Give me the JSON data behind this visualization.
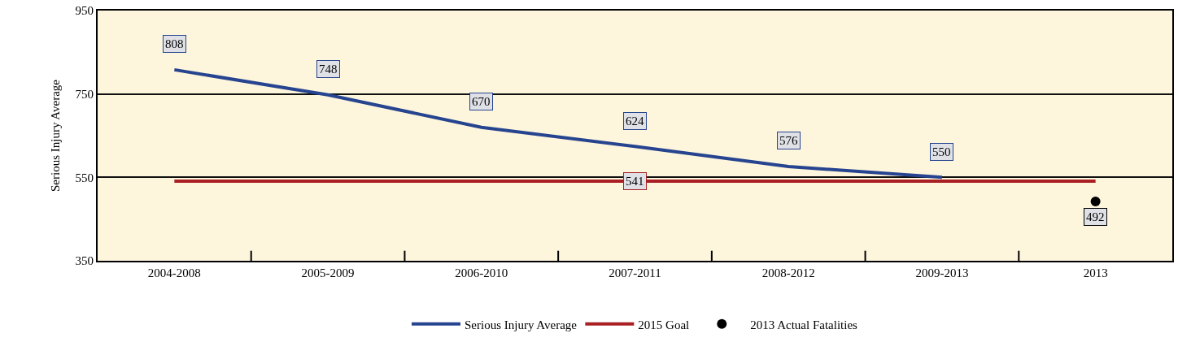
{
  "chart_data": {
    "type": "line",
    "ylabel": "Serious Injury Average",
    "categories": [
      "2004-2008",
      "2005-2009",
      "2006-2010",
      "2007-2011",
      "2008-2012",
      "2009-2013",
      "2013"
    ],
    "series": [
      {
        "name": "Serious Injury Average",
        "color": "#26448f",
        "values": [
          808,
          748,
          670,
          624,
          576,
          550,
          null
        ],
        "value_labels": [
          "808",
          "748",
          "670",
          "624",
          "576",
          "550",
          null
        ]
      },
      {
        "name": "2015 Goal",
        "type": "line",
        "color": "#a91f24",
        "values": [
          541,
          541,
          541,
          541,
          541,
          541,
          541
        ],
        "value_labels": [
          null,
          null,
          null,
          "541",
          null,
          null,
          null
        ]
      },
      {
        "name": "2013 Actual Fatalities",
        "type": "scatter",
        "color": "#000000",
        "marker": "circle",
        "values": [
          null,
          null,
          null,
          null,
          null,
          null,
          492
        ],
        "value_labels": [
          null,
          null,
          null,
          null,
          null,
          null,
          "492"
        ]
      }
    ],
    "ylim": [
      350,
      950
    ],
    "yticks": [
      350,
      550,
      750,
      950
    ],
    "grid": "y",
    "legend": "bottom",
    "line_style": "solid",
    "marker": "none"
  }
}
